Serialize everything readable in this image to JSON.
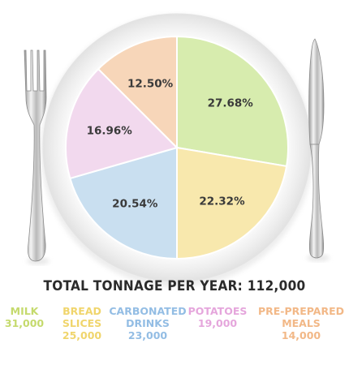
{
  "chart_data": {
    "type": "pie",
    "total_label": "TOTAL TONNAGE PER YEAR: 112,000",
    "slices": [
      {
        "name": "MILK",
        "label_lines": [
          "MILK"
        ],
        "value": 31000,
        "value_label": "31,000",
        "percent": 27.68,
        "percent_label": "27.68%",
        "color": "#d7ecae",
        "text_color": "#c5da6d"
      },
      {
        "name": "BREAD SLICES",
        "label_lines": [
          "BREAD",
          "SLICES"
        ],
        "value": 25000,
        "value_label": "25,000",
        "percent": 22.32,
        "percent_label": "22.32%",
        "color": "#f8e8ad",
        "text_color": "#f0d56c"
      },
      {
        "name": "CARBONATED DRINKS",
        "label_lines": [
          "CARBONATED",
          "DRINKS"
        ],
        "value": 23000,
        "value_label": "23,000",
        "percent": 20.54,
        "percent_label": "20.54%",
        "color": "#c9dff0",
        "text_color": "#93bde4"
      },
      {
        "name": "POTATOES",
        "label_lines": [
          "POTATOES"
        ],
        "value": 19000,
        "value_label": "19,000",
        "percent": 16.96,
        "percent_label": "16.96%",
        "color": "#f2d9ee",
        "text_color": "#e5a6dc"
      },
      {
        "name": "PRE-PREPARED MEALS",
        "label_lines": [
          "PRE-PREPARED",
          "MEALS"
        ],
        "value": 14000,
        "value_label": "14,000",
        "percent": 12.5,
        "percent_label": "12.50%",
        "color": "#f7d6b9",
        "text_color": "#f2b887"
      }
    ]
  }
}
